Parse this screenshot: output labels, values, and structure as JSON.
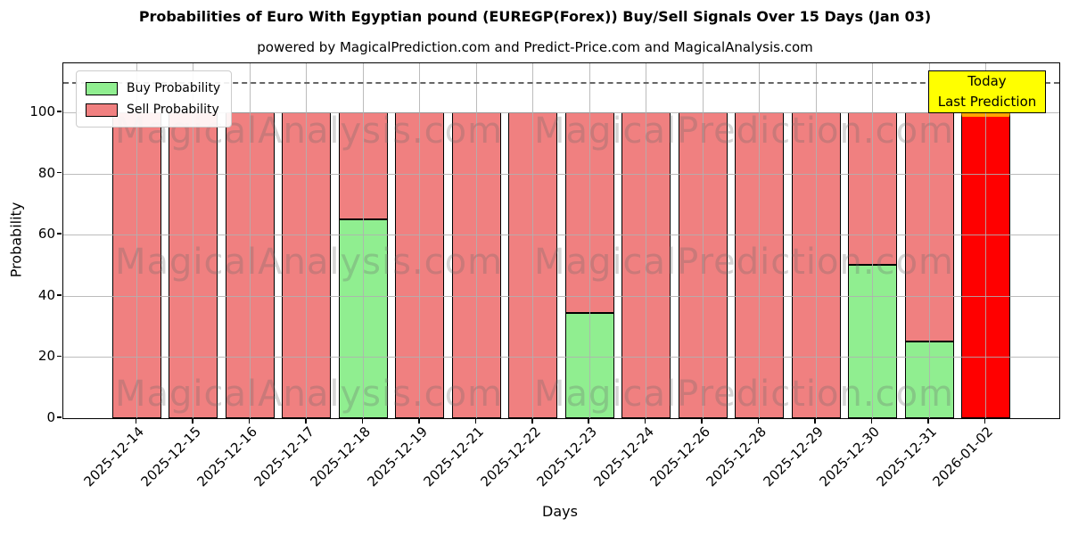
{
  "title": "Probabilities of Euro With Egyptian pound (EUREGP(Forex)) Buy/Sell Signals Over 15 Days (Jan 03)",
  "subtitle": "powered by MagicalPrediction.com and Predict-Price.com and MagicalAnalysis.com",
  "legend": {
    "buy_label": "Buy Probability",
    "sell_label": "Sell Probability"
  },
  "annotation": {
    "line1": "Today",
    "line2": "Last Prediction"
  },
  "watermarks": {
    "left": "MagicalAnalysis.com",
    "right": "MagicalPrediction.com"
  },
  "colors": {
    "buy": "#90EE90",
    "sell": "#F08080",
    "today_sell": "#FF0000",
    "today_edge": "#FFA500",
    "annotation_bg": "#FFFF00",
    "grid": "#B0B0B0",
    "dashed_line": "#666666",
    "bar_edge": "#000000"
  },
  "chart_data": {
    "type": "bar",
    "stacked": true,
    "title": "Probabilities of Euro With Egyptian pound (EUREGP(Forex)) Buy/Sell Signals Over 15 Days (Jan 03)",
    "xlabel": "Days",
    "ylabel": "Probability",
    "ylim": [
      0,
      116
    ],
    "yticks": [
      0,
      20,
      40,
      60,
      80,
      100
    ],
    "dashed_line_y": 110,
    "grid": true,
    "legend_position": "upper left",
    "categories": [
      "2025-12-14",
      "2025-12-15",
      "2025-12-16",
      "2025-12-17",
      "2025-12-18",
      "2025-12-19",
      "2025-12-21",
      "2025-12-22",
      "2025-12-23",
      "2025-12-24",
      "2025-12-26",
      "2025-12-28",
      "2025-12-29",
      "2025-12-30",
      "2025-12-31",
      "2026-01-02"
    ],
    "series": [
      {
        "name": "Buy Probability",
        "color": "#90EE90",
        "values": [
          0,
          0,
          0,
          0,
          65,
          0,
          0,
          0,
          34.5,
          0,
          0,
          0,
          0,
          50,
          25,
          0
        ]
      },
      {
        "name": "Sell Probability",
        "color": "#F08080",
        "values": [
          100,
          100,
          100,
          100,
          35,
          100,
          100,
          100,
          65.5,
          100,
          100,
          100,
          100,
          50,
          75,
          100
        ]
      }
    ],
    "highlight_index": 15
  }
}
